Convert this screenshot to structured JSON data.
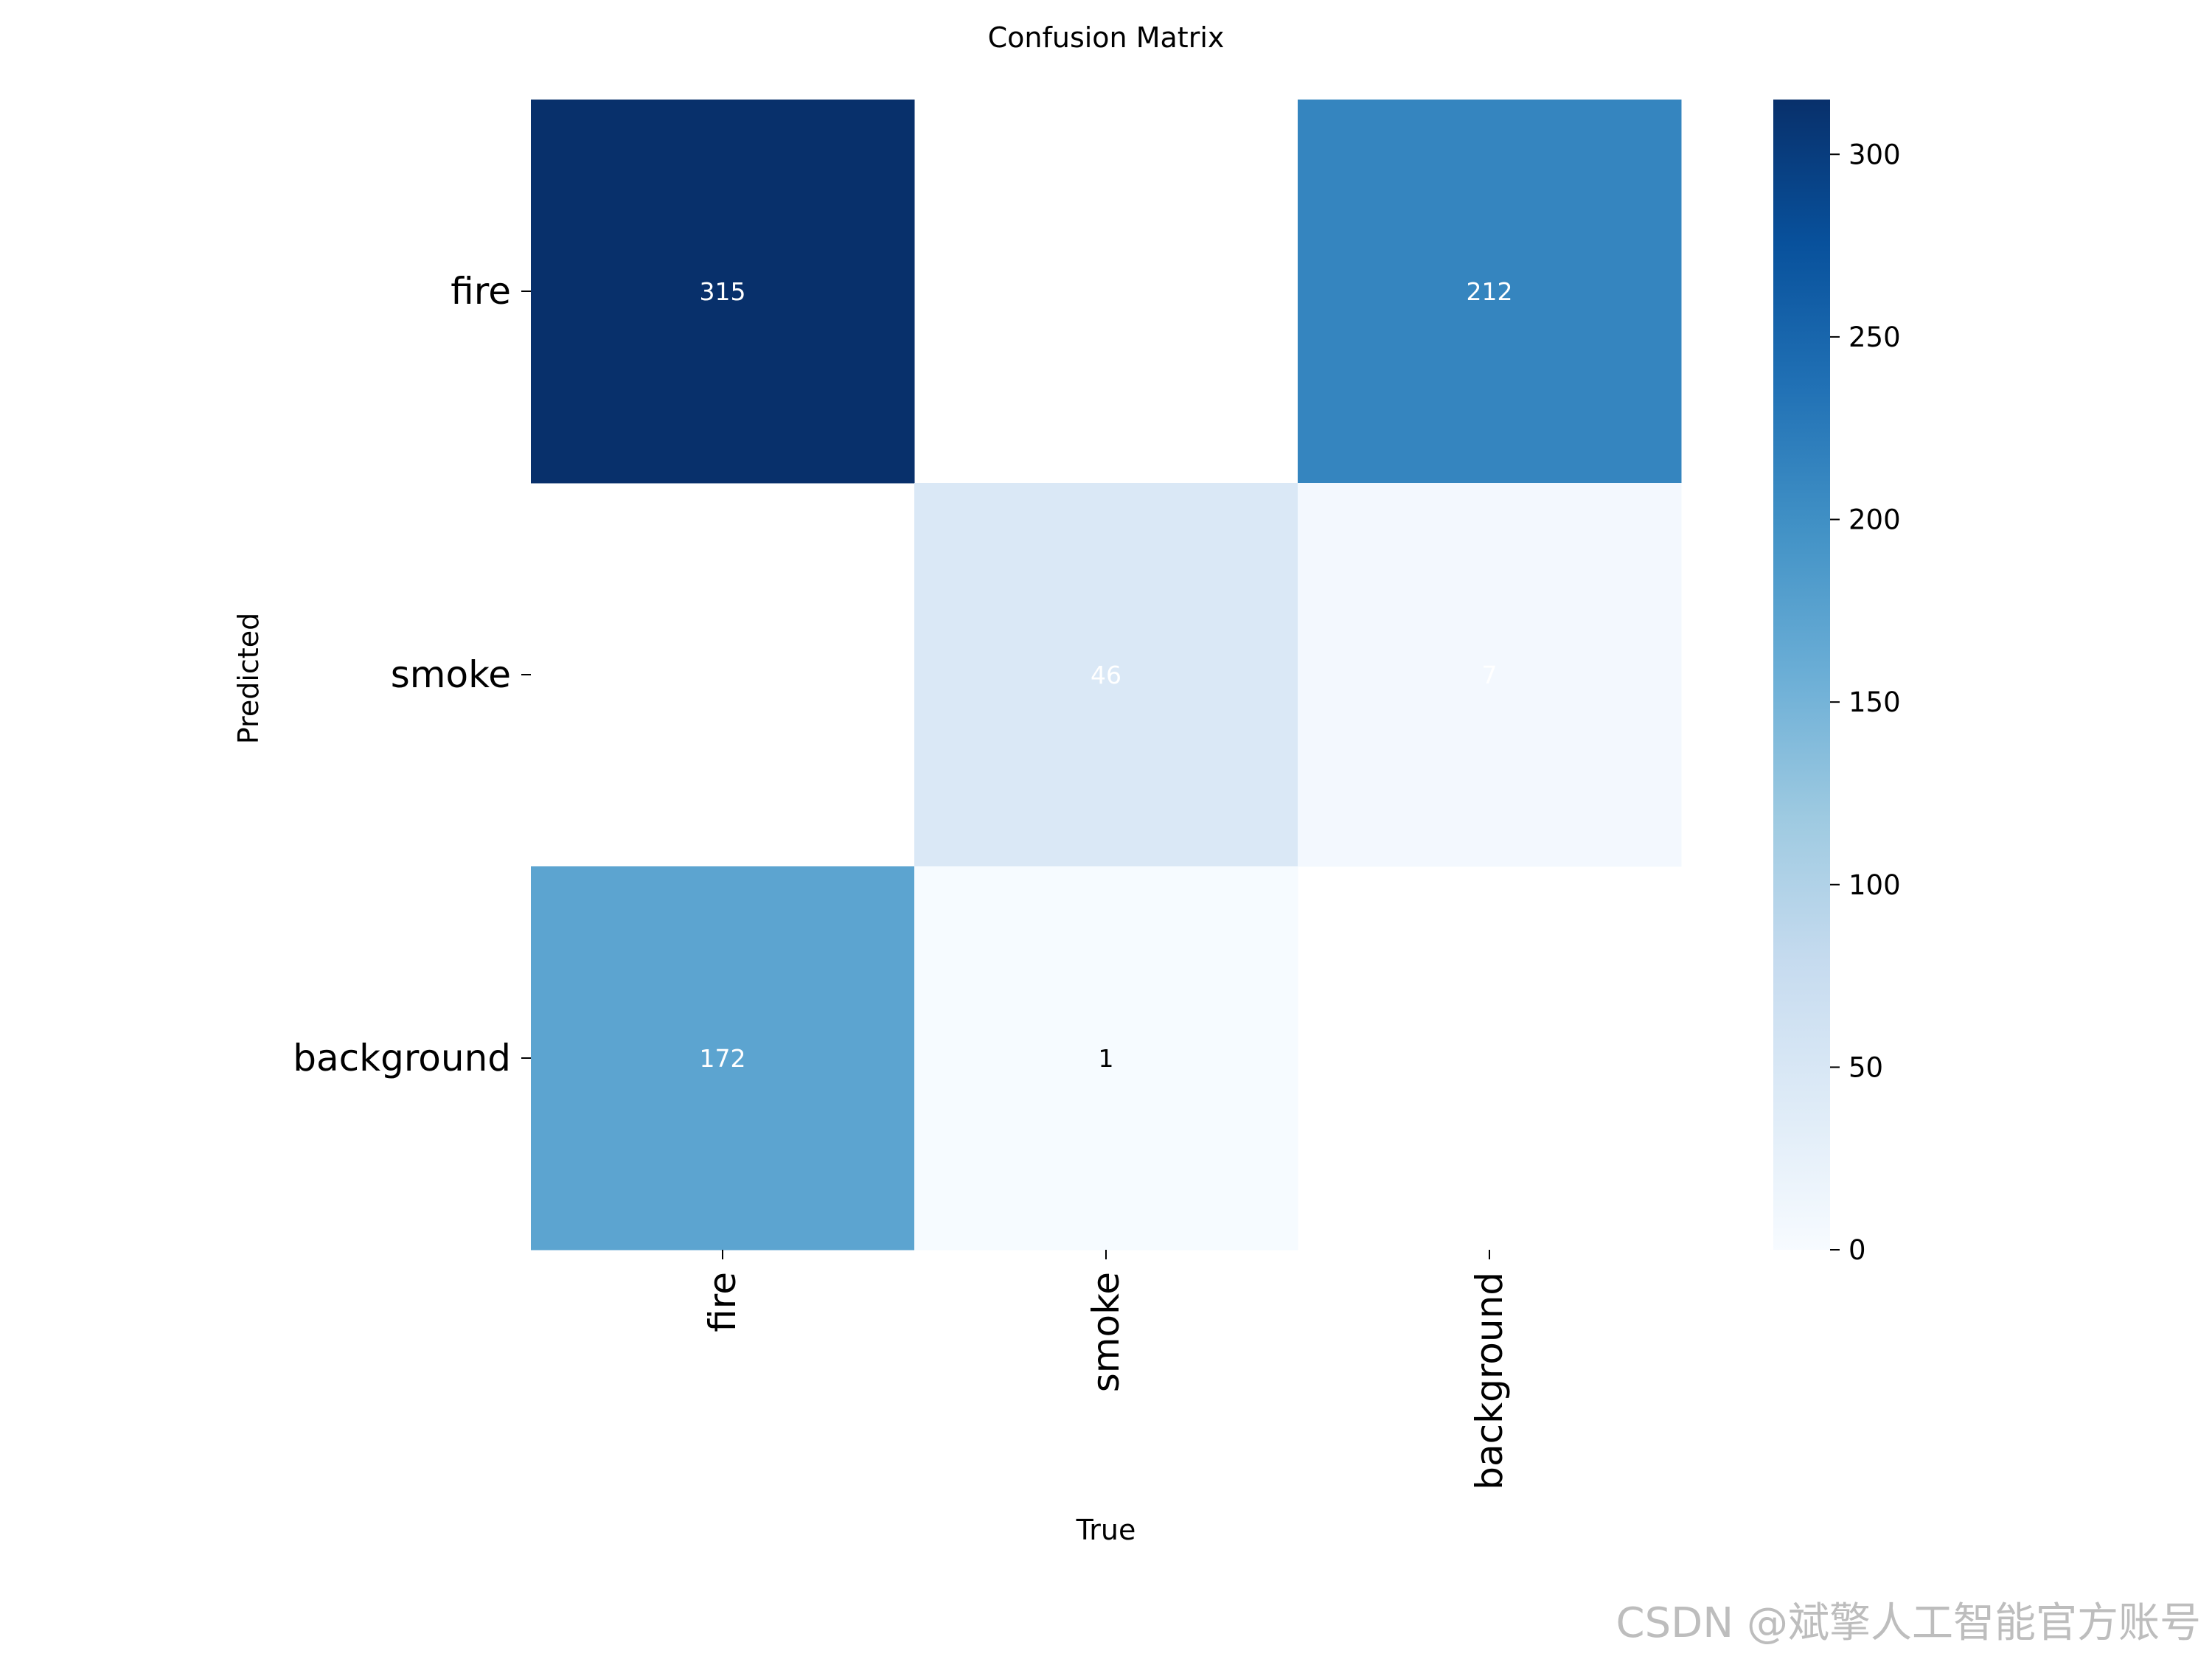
{
  "chart_data": {
    "type": "heatmap",
    "title": "Confusion Matrix",
    "xlabel": "True",
    "ylabel": "Predicted",
    "x_categories": [
      "fire",
      "smoke",
      "background"
    ],
    "y_categories": [
      "fire",
      "smoke",
      "background"
    ],
    "values": [
      [
        315,
        null,
        212
      ],
      [
        null,
        46,
        7
      ],
      [
        172,
        1,
        null
      ]
    ],
    "colormap": "Blues",
    "vmin": 0,
    "vmax": 315,
    "colorbar_ticks": [
      0,
      50,
      100,
      150,
      200,
      250,
      300
    ],
    "grid": false
  },
  "watermark": "CSDN @斌擎人工智能官方账号"
}
